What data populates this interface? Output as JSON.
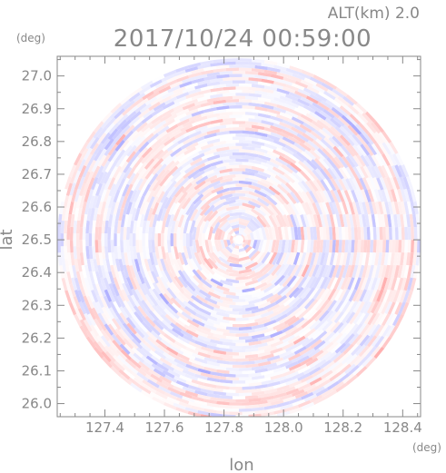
{
  "chart_data": {
    "type": "heatmap",
    "title": "2017/10/24 00:59:00",
    "subtitle": "ALT(km) 2.0",
    "xlabel": "lon",
    "ylabel": "lat",
    "x_unit": "(deg)",
    "y_unit": "(deg)",
    "xlim": [
      127.24,
      128.46
    ],
    "ylim": [
      25.96,
      27.06
    ],
    "x_ticks": [
      127.4,
      127.6,
      127.8,
      128.0,
      128.2,
      128.4
    ],
    "y_ticks": [
      26.0,
      26.1,
      26.2,
      26.3,
      26.4,
      26.5,
      26.6,
      26.7,
      26.8,
      26.9,
      27.0
    ],
    "x_tick_labels": [
      "127.4",
      "127.6",
      "127.8",
      "128.0",
      "128.2",
      "128.4"
    ],
    "y_tick_labels": [
      "26.0",
      "26.1",
      "26.2",
      "26.3",
      "26.4",
      "26.5",
      "26.6",
      "26.7",
      "26.8",
      "26.9",
      "27.0"
    ],
    "radar_center": {
      "lon": 127.85,
      "lat": 26.5
    },
    "radar_radius_deg_lon": 0.61,
    "colors": {
      "positive": "#ff8f8f",
      "negative": "#8f8fff",
      "neutral": "#ffffff",
      "axis": "#888888"
    },
    "grid": false
  }
}
